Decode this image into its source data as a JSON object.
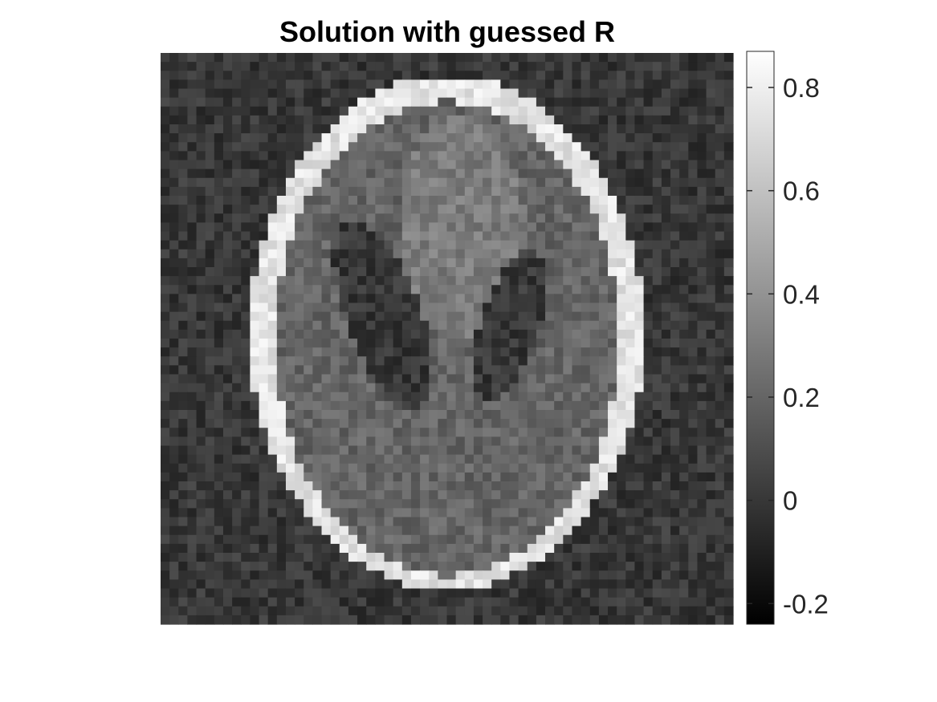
{
  "chart_data": {
    "type": "heatmap",
    "title": "Solution with guessed R",
    "xlabel": "",
    "ylabel": "",
    "grid": false,
    "colormap": "gray",
    "grid_size": [
      64,
      64
    ],
    "value_range": [
      -0.24,
      0.87
    ],
    "description_values": {
      "background": 0.0,
      "skull_ring": 0.75,
      "brain": 0.2,
      "upper_region": 0.3,
      "ventricles": 0.0
    },
    "colorbar": {
      "ticks": [
        0.8,
        0.6,
        0.4,
        0.2,
        0,
        -0.2
      ],
      "tick_labels": [
        "0.8",
        "0.6",
        "0.4",
        "0.2",
        "0",
        "-0.2"
      ],
      "range": [
        -0.24,
        0.87
      ]
    },
    "colors": {
      "low": "#000000",
      "high": "#ffffff",
      "tick_text": "#262626",
      "axis": "#262626"
    }
  }
}
